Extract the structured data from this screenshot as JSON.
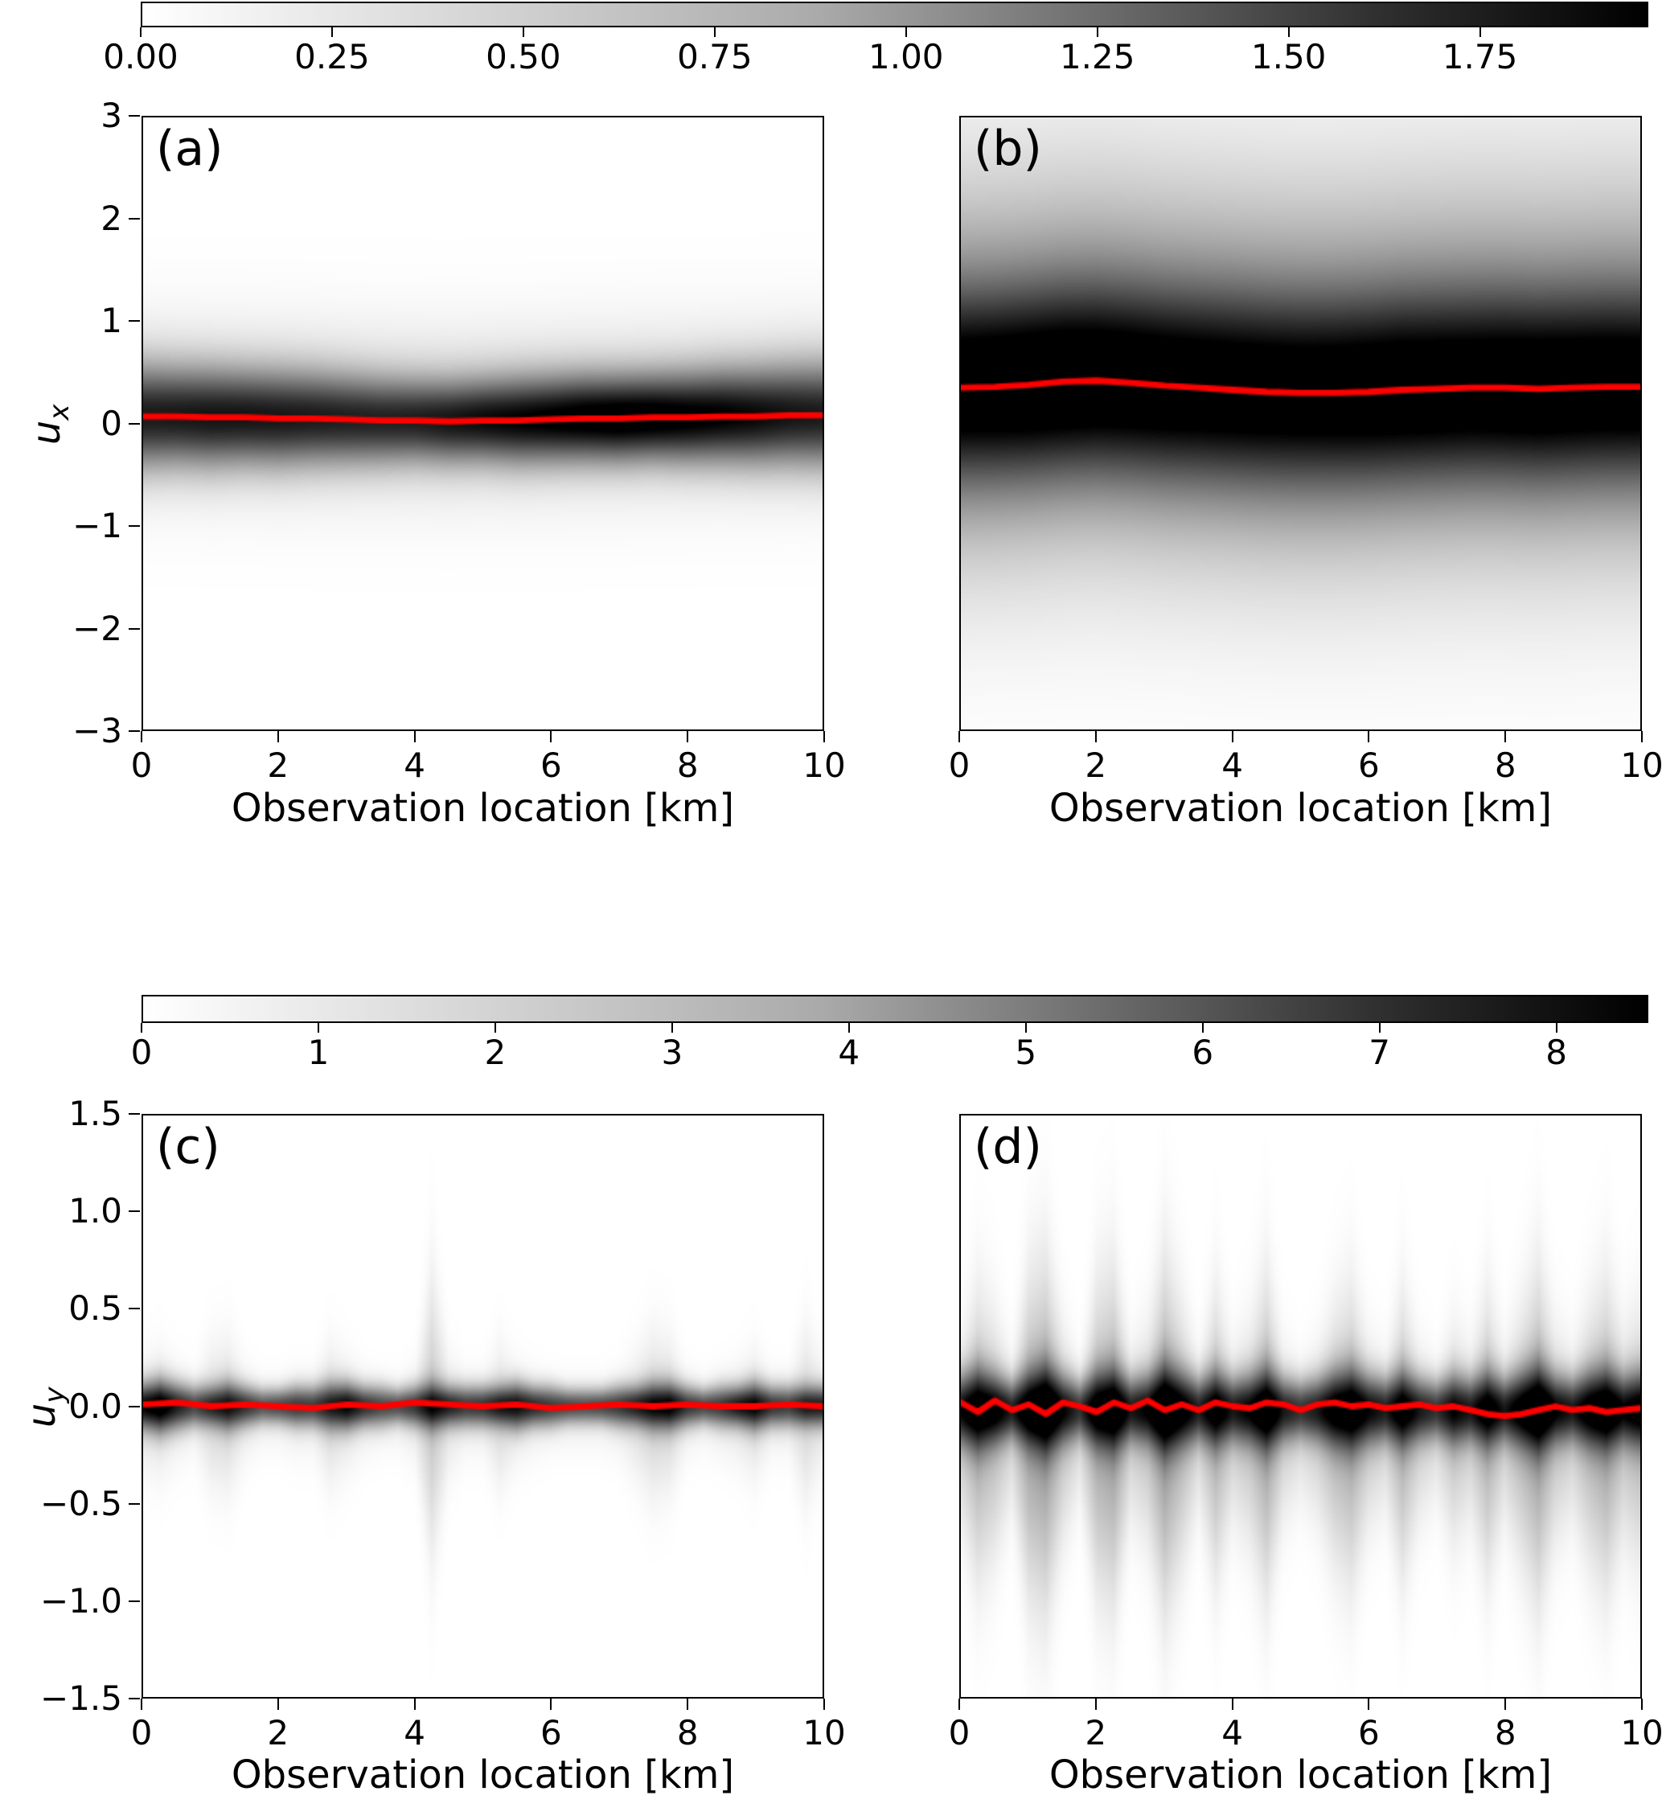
{
  "figure": {
    "xlabel": "Observation location [km]",
    "x_tick_values": [
      0,
      2,
      4,
      6,
      8,
      10
    ],
    "x_tick_labels": [
      "0",
      "2",
      "4",
      "6",
      "8",
      "10"
    ],
    "colorbar_top": {
      "orientation": "horizontal",
      "colormap": "Greys",
      "vmin": 0.0,
      "vmax": 1.97,
      "tick_values": [
        0.0,
        0.25,
        0.5,
        0.75,
        1.0,
        1.25,
        1.5,
        1.75
      ],
      "tick_labels": [
        "0.00",
        "0.25",
        "0.50",
        "0.75",
        "1.00",
        "1.25",
        "1.50",
        "1.75"
      ]
    },
    "colorbar_mid": {
      "orientation": "horizontal",
      "colormap": "Greys",
      "vmin": 0.0,
      "vmax": 8.52,
      "tick_values": [
        0,
        1,
        2,
        3,
        4,
        5,
        6,
        7,
        8
      ],
      "tick_labels": [
        "0",
        "1",
        "2",
        "3",
        "4",
        "5",
        "6",
        "7",
        "8"
      ]
    },
    "row1": {
      "ylabel_base": "u",
      "ylabel_sub": "x",
      "ylim": [
        -3,
        3
      ],
      "ytick_values": [
        3,
        2,
        1,
        0,
        -1,
        -2,
        -3
      ],
      "ytick_labels": [
        "3",
        "2",
        "1",
        "0",
        "−1",
        "−2",
        "−3"
      ]
    },
    "row2": {
      "ylabel_base": "u",
      "ylabel_sub": "y",
      "ylim": [
        -1.5,
        1.5
      ],
      "ytick_values": [
        1.5,
        1.0,
        0.5,
        0.0,
        -0.5,
        -1.0,
        -1.5
      ],
      "ytick_labels": [
        "1.5",
        "1.0",
        "0.5",
        "0.0",
        "−0.5",
        "−1.0",
        "−1.5"
      ]
    }
  },
  "chart_data": [
    {
      "id": "a",
      "label": "(a)",
      "type": "heatmap",
      "xlabel": "Observation location [km]",
      "ylabel": "u_x",
      "xlim": [
        0,
        10
      ],
      "ylim": [
        -3,
        3
      ],
      "colormap": "Greys",
      "vmax": 1.97,
      "density": {
        "x_step": 0.5,
        "mu": [
          0.07,
          0.07,
          0.06,
          0.06,
          0.05,
          0.05,
          0.04,
          0.03,
          0.03,
          0.02,
          0.03,
          0.03,
          0.04,
          0.05,
          0.05,
          0.06,
          0.06,
          0.07,
          0.07,
          0.08,
          0.08
        ],
        "sigma": [
          0.33,
          0.32,
          0.32,
          0.31,
          0.31,
          0.3,
          0.29,
          0.28,
          0.27,
          0.27,
          0.27,
          0.28,
          0.28,
          0.28,
          0.28,
          0.28,
          0.29,
          0.3,
          0.31,
          0.32,
          0.33
        ],
        "amp": [
          1.45,
          1.47,
          1.5,
          1.5,
          1.48,
          1.45,
          1.42,
          1.4,
          1.42,
          1.5,
          1.58,
          1.65,
          1.72,
          1.8,
          1.85,
          1.82,
          1.75,
          1.68,
          1.6,
          1.5,
          1.45
        ],
        "amp2": 0.32,
        "sigma2": 0.58,
        "mu2_offset": 0.05
      },
      "mean_line": {
        "color": "#ff0000",
        "x_step": 0.5,
        "y": [
          0.07,
          0.07,
          0.06,
          0.06,
          0.05,
          0.05,
          0.04,
          0.03,
          0.03,
          0.02,
          0.03,
          0.03,
          0.04,
          0.05,
          0.05,
          0.06,
          0.06,
          0.07,
          0.07,
          0.08,
          0.08
        ]
      }
    },
    {
      "id": "b",
      "label": "(b)",
      "type": "heatmap",
      "xlabel": "Observation location [km]",
      "ylabel": "u_x",
      "xlim": [
        0,
        10
      ],
      "ylim": [
        -3,
        3
      ],
      "colormap": "Greys",
      "vmax": 1.97,
      "density": {
        "x_step": 0.5,
        "mu": [
          0.35,
          0.36,
          0.38,
          0.41,
          0.42,
          0.4,
          0.37,
          0.35,
          0.33,
          0.31,
          0.3,
          0.3,
          0.31,
          0.33,
          0.34,
          0.35,
          0.35,
          0.34,
          0.35,
          0.36,
          0.36
        ],
        "sigma": 0.62,
        "amp": [
          1.4,
          1.42,
          1.45,
          1.46,
          1.44,
          1.42,
          1.4,
          1.38,
          1.37,
          1.36,
          1.35,
          1.36,
          1.38,
          1.4,
          1.39,
          1.38,
          1.4,
          1.41,
          1.4,
          1.39,
          1.38
        ],
        "amp2": 0.95,
        "sigma2": 1.3,
        "mu2_offset": 0.15
      },
      "mean_line": {
        "color": "#ff0000",
        "x_step": 0.5,
        "y": [
          0.35,
          0.36,
          0.38,
          0.41,
          0.42,
          0.4,
          0.37,
          0.35,
          0.33,
          0.31,
          0.3,
          0.3,
          0.31,
          0.33,
          0.34,
          0.35,
          0.35,
          0.34,
          0.35,
          0.36,
          0.36
        ]
      }
    },
    {
      "id": "c",
      "label": "(c)",
      "type": "heatmap",
      "xlabel": "Observation location [km]",
      "ylabel": "u_y",
      "xlim": [
        0,
        10
      ],
      "ylim": [
        -1.5,
        1.5
      ],
      "colormap": "Greys",
      "vmax": 8.52,
      "density": {
        "x_step": 0.25,
        "mu": 0.0,
        "sigma": [
          0.08,
          0.09,
          0.08,
          0.07,
          0.07,
          0.08,
          0.07,
          0.06,
          0.06,
          0.07,
          0.07,
          0.08,
          0.08,
          0.07,
          0.07,
          0.06,
          0.07,
          0.08,
          0.07,
          0.07,
          0.07,
          0.07,
          0.08,
          0.07,
          0.07,
          0.06,
          0.06,
          0.06,
          0.07,
          0.07,
          0.08,
          0.08,
          0.07,
          0.06,
          0.07,
          0.07,
          0.08,
          0.07,
          0.07,
          0.07,
          0.07
        ],
        "amp": [
          7.5,
          8.5,
          6.8,
          5.6,
          6.2,
          7.0,
          6.2,
          5.2,
          5.6,
          6.0,
          5.8,
          6.6,
          7.6,
          6.4,
          5.6,
          5.4,
          6.0,
          7.0,
          6.6,
          6.0,
          6.2,
          6.8,
          7.4,
          6.6,
          6.0,
          5.6,
          5.4,
          5.6,
          6.0,
          6.6,
          7.2,
          7.6,
          6.2,
          5.6,
          6.0,
          7.0,
          7.6,
          6.2,
          5.8,
          6.6,
          6.8
        ],
        "amp2": [
          0.9,
          1.0,
          0.7,
          0.5,
          1.2,
          1.3,
          0.7,
          0.5,
          0.5,
          0.6,
          0.6,
          1.2,
          0.9,
          0.6,
          0.5,
          0.5,
          0.7,
          1.8,
          0.9,
          0.6,
          0.6,
          1.2,
          0.8,
          0.6,
          0.5,
          0.5,
          0.5,
          0.5,
          0.6,
          1.0,
          1.4,
          1.3,
          0.6,
          0.5,
          0.6,
          0.8,
          1.1,
          0.6,
          0.6,
          1.2,
          0.8
        ],
        "sigma2": [
          0.18,
          0.2,
          0.16,
          0.14,
          0.22,
          0.24,
          0.16,
          0.12,
          0.12,
          0.14,
          0.14,
          0.22,
          0.18,
          0.14,
          0.12,
          0.12,
          0.16,
          0.45,
          0.2,
          0.14,
          0.14,
          0.22,
          0.16,
          0.14,
          0.12,
          0.12,
          0.12,
          0.12,
          0.14,
          0.2,
          0.26,
          0.24,
          0.14,
          0.12,
          0.14,
          0.16,
          0.2,
          0.14,
          0.14,
          0.28,
          0.18
        ],
        "mu2_offset": -0.05
      },
      "mean_line": {
        "color": "#ff0000",
        "x_step": 0.5,
        "y": [
          0.01,
          0.02,
          0.0,
          0.01,
          0.0,
          -0.01,
          0.01,
          0.0,
          0.02,
          0.01,
          0.0,
          0.01,
          -0.01,
          0.0,
          0.01,
          0.0,
          0.01,
          0.0,
          0.0,
          0.01,
          0.0
        ]
      }
    },
    {
      "id": "d",
      "label": "(d)",
      "type": "heatmap",
      "xlabel": "Observation location [km]",
      "ylabel": "u_y",
      "xlim": [
        0,
        10
      ],
      "ylim": [
        -1.5,
        1.5
      ],
      "colormap": "Greys",
      "vmax": 8.52,
      "density": {
        "x_step": 0.25,
        "mu": -0.02,
        "sigma": [
          0.12,
          0.14,
          0.12,
          0.1,
          0.13,
          0.15,
          0.12,
          0.1,
          0.13,
          0.14,
          0.11,
          0.12,
          0.15,
          0.13,
          0.11,
          0.13,
          0.11,
          0.12,
          0.14,
          0.11,
          0.1,
          0.11,
          0.13,
          0.14,
          0.12,
          0.11,
          0.13,
          0.11,
          0.1,
          0.12,
          0.11,
          0.13,
          0.11,
          0.13,
          0.15,
          0.12,
          0.11,
          0.13,
          0.14,
          0.12,
          0.13
        ],
        "amp": [
          7.0,
          8.0,
          7.5,
          6.5,
          7.5,
          8.5,
          7.0,
          6.0,
          7.5,
          8.0,
          6.5,
          7.0,
          8.5,
          7.5,
          6.5,
          7.5,
          6.5,
          7.0,
          8.0,
          6.5,
          6.0,
          6.5,
          7.5,
          8.0,
          7.0,
          6.5,
          7.5,
          6.5,
          6.0,
          7.0,
          6.5,
          7.5,
          6.5,
          7.5,
          8.5,
          7.0,
          6.5,
          7.5,
          8.0,
          7.0,
          7.5
        ],
        "amp2": [
          1.5,
          2.5,
          2.0,
          1.2,
          2.8,
          3.2,
          1.8,
          1.0,
          2.6,
          3.0,
          1.4,
          1.8,
          3.2,
          2.2,
          1.2,
          2.4,
          1.4,
          1.8,
          2.8,
          1.4,
          1.0,
          1.4,
          2.2,
          2.6,
          1.6,
          1.2,
          2.4,
          1.4,
          1.0,
          1.8,
          1.4,
          2.4,
          1.4,
          2.2,
          3.0,
          1.8,
          1.4,
          2.2,
          2.8,
          1.8,
          2.2
        ],
        "sigma2": [
          0.3,
          0.45,
          0.38,
          0.25,
          0.5,
          0.55,
          0.35,
          0.22,
          0.48,
          0.52,
          0.28,
          0.35,
          0.55,
          0.42,
          0.25,
          0.45,
          0.28,
          0.35,
          0.5,
          0.28,
          0.22,
          0.28,
          0.4,
          0.46,
          0.3,
          0.25,
          0.44,
          0.28,
          0.22,
          0.34,
          0.28,
          0.44,
          0.28,
          0.4,
          0.52,
          0.34,
          0.28,
          0.4,
          0.48,
          0.34,
          0.4
        ],
        "mu2_offset": -0.15
      },
      "mean_line": {
        "color": "#ff0000",
        "x_step": 0.25,
        "y": [
          0.02,
          -0.03,
          0.03,
          -0.02,
          0.01,
          -0.04,
          0.02,
          0.0,
          -0.03,
          0.02,
          -0.01,
          0.03,
          -0.02,
          0.01,
          -0.02,
          0.02,
          0.0,
          -0.01,
          0.02,
          0.01,
          -0.02,
          0.01,
          0.02,
          0.0,
          0.01,
          -0.01,
          0.0,
          0.01,
          -0.01,
          0.0,
          -0.02,
          -0.04,
          -0.05,
          -0.04,
          -0.02,
          0.0,
          -0.02,
          -0.01,
          -0.03,
          -0.02,
          -0.01
        ]
      }
    }
  ]
}
